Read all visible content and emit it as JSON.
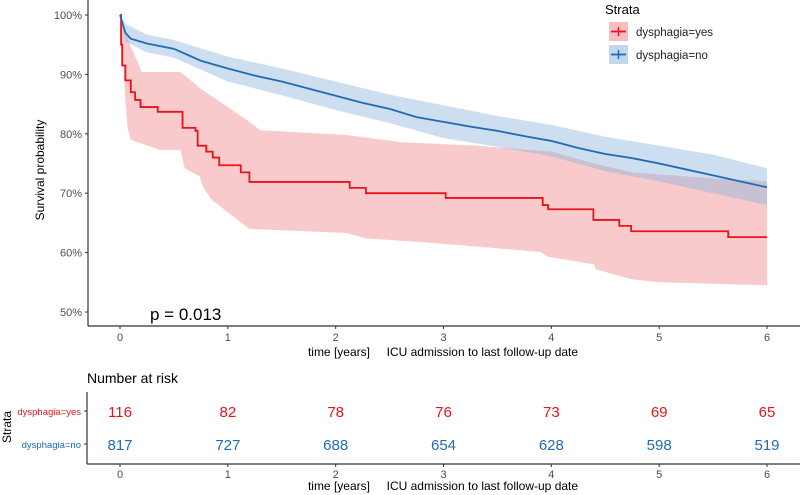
{
  "chart_data": {
    "type": "line",
    "subtype": "kaplan-meier",
    "ylabel": "Survival probability",
    "xlabel": "time [years]     ICU admission to last follow-up date",
    "xlim": [
      0,
      6
    ],
    "ylim": [
      0.5,
      1.0
    ],
    "x_ticks": [
      "0",
      "1",
      "2",
      "3",
      "4",
      "5",
      "6"
    ],
    "y_ticks": [
      {
        "v": 1.0,
        "label": "100%"
      },
      {
        "v": 0.9,
        "label": "90%"
      },
      {
        "v": 0.8,
        "label": "80%"
      },
      {
        "v": 0.7,
        "label": "70%"
      },
      {
        "v": 0.6,
        "label": "60%"
      },
      {
        "v": 0.5,
        "label": "50%"
      }
    ],
    "grid": false,
    "annotation": "p = 0.013",
    "legend": {
      "title": "Strata",
      "position": "top-right"
    },
    "series": [
      {
        "name": "dysphagia=yes",
        "color": "#e8141c",
        "band_color": "#f08a8e",
        "step": true,
        "points": [
          [
            0,
            1.0
          ],
          [
            0.01,
            0.95
          ],
          [
            0.02,
            0.915
          ],
          [
            0.05,
            0.89
          ],
          [
            0.1,
            0.87
          ],
          [
            0.14,
            0.857
          ],
          [
            0.19,
            0.845
          ],
          [
            0.35,
            0.837
          ],
          [
            0.58,
            0.81
          ],
          [
            0.7,
            0.805
          ],
          [
            0.72,
            0.78
          ],
          [
            0.8,
            0.77
          ],
          [
            0.86,
            0.76
          ],
          [
            0.92,
            0.747
          ],
          [
            1.12,
            0.735
          ],
          [
            1.2,
            0.719
          ],
          [
            2.13,
            0.709
          ],
          [
            2.28,
            0.7
          ],
          [
            3.02,
            0.692
          ],
          [
            3.92,
            0.68
          ],
          [
            3.97,
            0.673
          ],
          [
            4.39,
            0.655
          ],
          [
            4.63,
            0.645
          ],
          [
            4.74,
            0.636
          ],
          [
            5.64,
            0.626
          ],
          [
            6.0,
            0.626
          ]
        ],
        "upper": [
          [
            0,
            1.0
          ],
          [
            0.09,
            0.95
          ],
          [
            0.17,
            0.919
          ],
          [
            0.2,
            0.904
          ],
          [
            0.56,
            0.904
          ],
          [
            0.74,
            0.877
          ],
          [
            1.2,
            0.82
          ],
          [
            1.3,
            0.806
          ],
          [
            2.1,
            0.798
          ],
          [
            2.6,
            0.786
          ],
          [
            3.3,
            0.78
          ],
          [
            4.0,
            0.77
          ],
          [
            4.4,
            0.75
          ],
          [
            4.75,
            0.735
          ],
          [
            5.5,
            0.725
          ],
          [
            6.0,
            0.72
          ]
        ],
        "lower": [
          [
            0,
            1.0
          ],
          [
            0.05,
            0.857
          ],
          [
            0.07,
            0.81
          ],
          [
            0.1,
            0.79
          ],
          [
            0.37,
            0.773
          ],
          [
            0.56,
            0.773
          ],
          [
            0.6,
            0.742
          ],
          [
            0.74,
            0.728
          ],
          [
            0.77,
            0.71
          ],
          [
            0.85,
            0.689
          ],
          [
            1.17,
            0.644
          ],
          [
            1.2,
            0.64
          ],
          [
            2.1,
            0.633
          ],
          [
            2.28,
            0.624
          ],
          [
            3.0,
            0.615
          ],
          [
            3.9,
            0.601
          ],
          [
            3.97,
            0.593
          ],
          [
            4.4,
            0.58
          ],
          [
            4.41,
            0.572
          ],
          [
            4.75,
            0.555
          ],
          [
            5.0,
            0.55
          ],
          [
            6.0,
            0.545
          ]
        ]
      },
      {
        "name": "dysphagia=no",
        "color": "#1f6bb5",
        "band_color": "#8fb6dc",
        "step": false,
        "points": [
          [
            0,
            1.0
          ],
          [
            0.05,
            0.97
          ],
          [
            0.1,
            0.96
          ],
          [
            0.25,
            0.952
          ],
          [
            0.5,
            0.943
          ],
          [
            0.75,
            0.923
          ],
          [
            1.0,
            0.91
          ],
          [
            1.25,
            0.898
          ],
          [
            1.5,
            0.888
          ],
          [
            1.75,
            0.876
          ],
          [
            2.0,
            0.864
          ],
          [
            2.25,
            0.852
          ],
          [
            2.5,
            0.842
          ],
          [
            2.75,
            0.828
          ],
          [
            3.0,
            0.82
          ],
          [
            3.25,
            0.812
          ],
          [
            3.5,
            0.805
          ],
          [
            3.75,
            0.796
          ],
          [
            4.0,
            0.788
          ],
          [
            4.25,
            0.776
          ],
          [
            4.5,
            0.766
          ],
          [
            4.75,
            0.759
          ],
          [
            5.0,
            0.75
          ],
          [
            5.25,
            0.74
          ],
          [
            5.5,
            0.73
          ],
          [
            5.75,
            0.72
          ],
          [
            6.0,
            0.71
          ]
        ],
        "upper": [
          [
            0,
            1.0
          ],
          [
            0.05,
            0.985
          ],
          [
            0.25,
            0.967
          ],
          [
            0.5,
            0.958
          ],
          [
            1.0,
            0.93
          ],
          [
            1.5,
            0.91
          ],
          [
            2.0,
            0.888
          ],
          [
            2.5,
            0.866
          ],
          [
            3.0,
            0.848
          ],
          [
            3.5,
            0.83
          ],
          [
            4.0,
            0.815
          ],
          [
            4.5,
            0.795
          ],
          [
            5.0,
            0.78
          ],
          [
            5.5,
            0.765
          ],
          [
            6.0,
            0.742
          ]
        ],
        "lower": [
          [
            0,
            1.0
          ],
          [
            0.05,
            0.955
          ],
          [
            0.25,
            0.937
          ],
          [
            0.5,
            0.928
          ],
          [
            1.0,
            0.888
          ],
          [
            1.5,
            0.865
          ],
          [
            2.0,
            0.84
          ],
          [
            2.5,
            0.818
          ],
          [
            3.0,
            0.793
          ],
          [
            3.5,
            0.778
          ],
          [
            4.0,
            0.762
          ],
          [
            4.5,
            0.737
          ],
          [
            5.0,
            0.72
          ],
          [
            5.5,
            0.7
          ],
          [
            6.0,
            0.68
          ]
        ]
      }
    ],
    "risk_table": {
      "title": "Number at risk",
      "ylabel": "Strata",
      "xlabel": "time [years]     ICU admission to last follow-up date",
      "rows": [
        {
          "name": "dysphagia=yes",
          "color": "#e8141c",
          "values": [
            "116",
            "82",
            "78",
            "76",
            "73",
            "69",
            "65"
          ]
        },
        {
          "name": "dysphagia=no",
          "color": "#1f6bb5",
          "values": [
            "817",
            "727",
            "688",
            "654",
            "628",
            "598",
            "519"
          ]
        }
      ]
    }
  }
}
